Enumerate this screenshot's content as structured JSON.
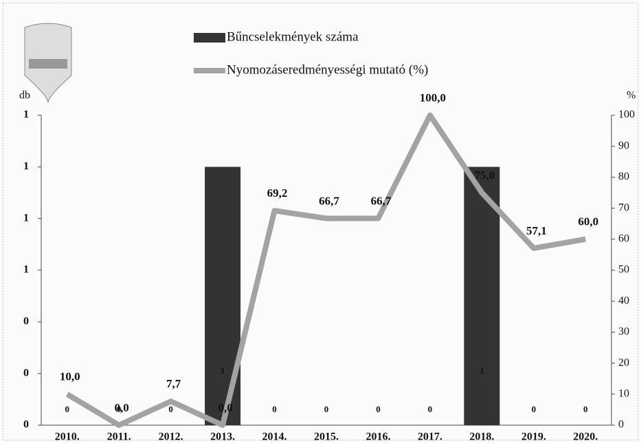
{
  "chart_data": {
    "type": "bar_line",
    "y_label": "db",
    "y2_label": "%",
    "categories": [
      "2010.",
      "2011.",
      "2012.",
      "2013.",
      "2014.",
      "2015.",
      "2016.",
      "2017.",
      "2018.",
      "2019.",
      "2020."
    ],
    "series": [
      {
        "name": "Bűncselekmények száma",
        "type": "bar",
        "color": "#333333",
        "values": [
          0,
          0,
          0,
          1,
          0,
          0,
          0,
          0,
          1,
          0,
          0
        ]
      },
      {
        "name": "Nyomozáseredményességi mutató (%)",
        "type": "line",
        "axis": "y2",
        "color": "#a3a3a3",
        "values": [
          10.0,
          0.0,
          7.7,
          0.0,
          69.2,
          66.7,
          66.7,
          100.0,
          75.0,
          57.1,
          60.0
        ],
        "value_labels": [
          "10,0",
          "0,0",
          "7,7",
          "0,0",
          "69,2",
          "66,7",
          "66,7",
          "100,0",
          "75,0",
          "57,1",
          "60,0"
        ]
      }
    ],
    "ylim": [
      0,
      1.2
    ],
    "yticks": [
      {
        "value": 0,
        "label": "0"
      },
      {
        "value": 0.2,
        "label": "0"
      },
      {
        "value": 0.4,
        "label": "0"
      },
      {
        "value": 0.6,
        "label": "1"
      },
      {
        "value": 0.8,
        "label": "1"
      },
      {
        "value": 1.0,
        "label": "1"
      },
      {
        "value": 1.2,
        "label": "1"
      }
    ],
    "y2lim": [
      0,
      100
    ],
    "y2ticks": [
      0,
      10,
      20,
      30,
      40,
      50,
      60,
      70,
      80,
      90,
      100
    ]
  }
}
